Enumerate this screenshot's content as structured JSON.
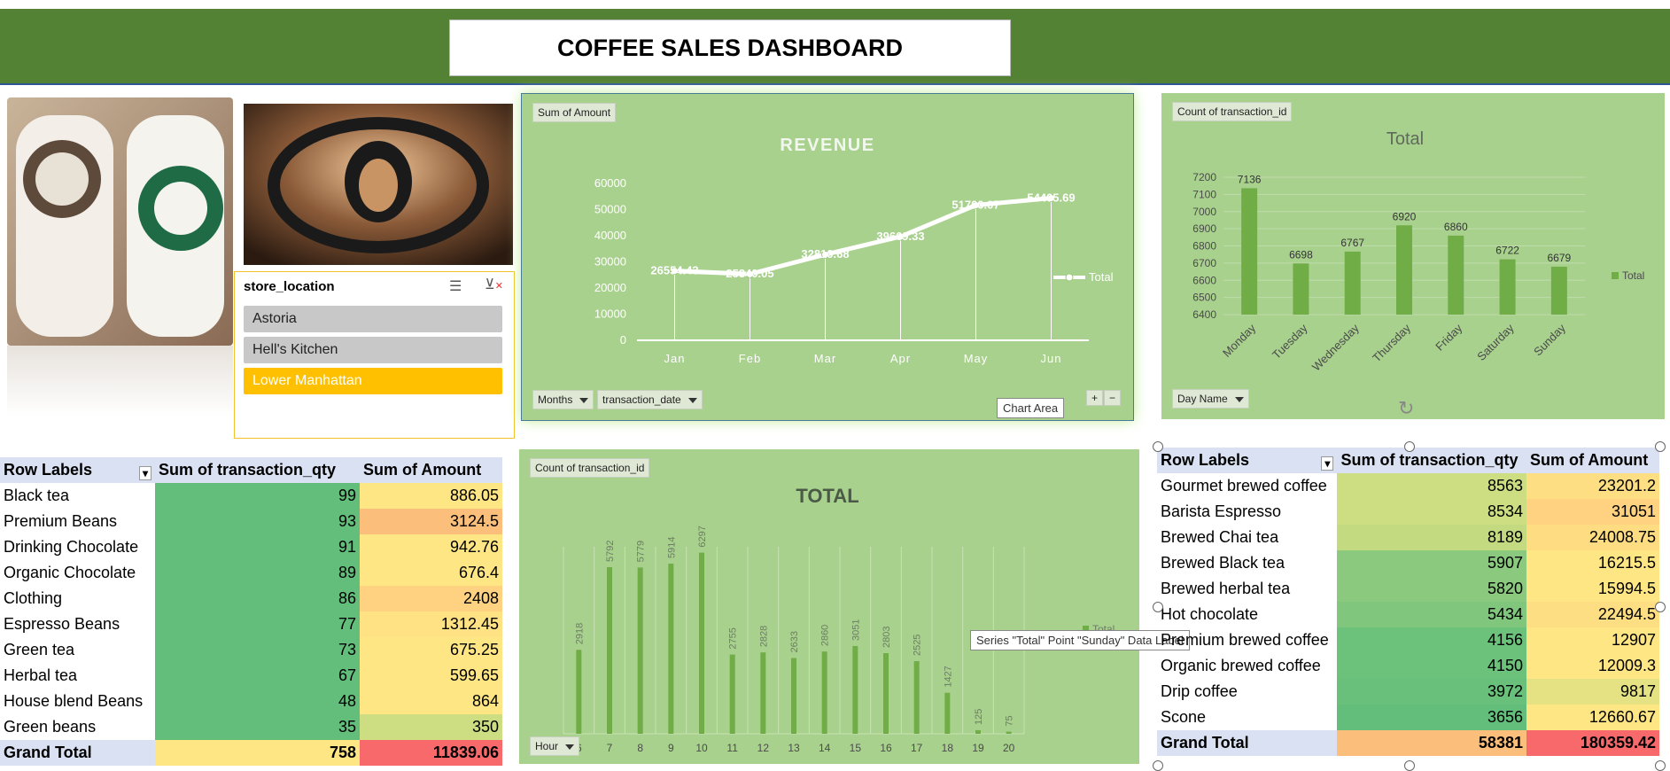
{
  "title": "COFFEE SALES DASHBOARD",
  "slicer": {
    "header": "store_location",
    "items": [
      "Astoria",
      "Hell's Kitchen",
      "Lower Manhattan"
    ],
    "selected": "Lower Manhattan"
  },
  "revenue_panel": {
    "tag": "Sum of Amount",
    "filter_months": "Months",
    "filter_date": "transaction_date",
    "chart_area_tooltip": "Chart Area",
    "plus": "+",
    "minus": "−"
  },
  "weekday_panel": {
    "tag": "Count  of transaction_id",
    "filter": "Day  Name"
  },
  "hour_panel": {
    "tag": "Count  of transaction_id",
    "filter": "Hour",
    "tooltip": "Series \"Total\" Point \"Sunday\" Data Label"
  },
  "chart_data": [
    {
      "type": "line",
      "title": "REVENUE",
      "categories": [
        "Jan",
        "Feb",
        "Mar",
        "Apr",
        "May",
        "Jun"
      ],
      "series": [
        {
          "name": "Total",
          "values": [
            26554.43,
            25340.05,
            32810.68,
            39669.33,
            51700.07,
            54405.69
          ]
        }
      ],
      "labels": [
        "26554.43",
        "25340.05",
        "32810.68",
        "39669.33",
        "51700.07",
        "54405.69"
      ],
      "yticks": [
        0,
        10000,
        20000,
        30000,
        40000,
        50000,
        60000
      ],
      "ylim": [
        0,
        60000
      ],
      "legend": "right"
    },
    {
      "type": "bar",
      "title": "Total",
      "categories": [
        "Monday",
        "Tuesday",
        "Wednesday",
        "Thursday",
        "Friday",
        "Saturday",
        "Sunday"
      ],
      "series": [
        {
          "name": "Total",
          "values": [
            7136,
            6698,
            6767,
            6920,
            6860,
            6722,
            6679
          ]
        }
      ],
      "yticks": [
        6400,
        6500,
        6600,
        6700,
        6800,
        6900,
        7000,
        7100,
        7200
      ],
      "ylim": [
        6400,
        7200
      ],
      "legend": "right"
    },
    {
      "type": "bar",
      "title": "TOTAL",
      "categories": [
        "6",
        "7",
        "8",
        "9",
        "10",
        "11",
        "12",
        "13",
        "14",
        "15",
        "16",
        "17",
        "18",
        "19",
        "20"
      ],
      "series": [
        {
          "name": "Total",
          "values": [
            2918,
            5792,
            5779,
            5914,
            6297,
            2755,
            2828,
            2633,
            2860,
            3051,
            2803,
            2525,
            1427,
            125,
            75
          ]
        }
      ],
      "ylim": [
        0,
        6500
      ],
      "legend": "right"
    }
  ],
  "left_table": {
    "headers": [
      "Row Labels",
      "Sum of transaction_qty",
      "Sum of Amount"
    ],
    "rows": [
      [
        "Black tea",
        "99",
        "886.05"
      ],
      [
        "Premium Beans",
        "93",
        "3124.5"
      ],
      [
        "Drinking Chocolate",
        "91",
        "942.76"
      ],
      [
        "Organic Chocolate",
        "89",
        "676.4"
      ],
      [
        "Clothing",
        "86",
        "2408"
      ],
      [
        "Espresso Beans",
        "77",
        "1312.45"
      ],
      [
        "Green tea",
        "73",
        "675.25"
      ],
      [
        "Herbal tea",
        "67",
        "599.65"
      ],
      [
        "House blend Beans",
        "48",
        "864"
      ],
      [
        "Green beans",
        "35",
        "350"
      ]
    ],
    "total": [
      "Grand Total",
      "758",
      "11839.06"
    ],
    "qty_colors": [
      "#63be7b",
      "#63be7b",
      "#63be7b",
      "#63be7b",
      "#63be7b",
      "#63be7b",
      "#63be7b",
      "#63be7b",
      "#63be7b",
      "#63be7b"
    ],
    "amt_colors": [
      "#ffe684",
      "#fcbf7b",
      "#ffe684",
      "#ffe684",
      "#fed280",
      "#ffe283",
      "#ffe684",
      "#ffe684",
      "#ffe684",
      "#cddd82"
    ]
  },
  "right_table": {
    "headers": [
      "Row Labels",
      "Sum of transaction_qty",
      "Sum of Amount"
    ],
    "rows": [
      [
        "Gourmet brewed coffee",
        "8563",
        "23201.2"
      ],
      [
        "Barista Espresso",
        "8534",
        "31051"
      ],
      [
        "Brewed Chai tea",
        "8189",
        "24008.75"
      ],
      [
        "Brewed Black tea",
        "5907",
        "16215.5"
      ],
      [
        "Brewed herbal tea",
        "5820",
        "15994.5"
      ],
      [
        "Hot chocolate",
        "5434",
        "22494.5"
      ],
      [
        "Premium brewed coffee",
        "4156",
        "12907"
      ],
      [
        "Organic brewed coffee",
        "4150",
        "12009.3"
      ],
      [
        "Drip coffee",
        "3972",
        "9817"
      ],
      [
        "Scone",
        "3656",
        "12660.67"
      ]
    ],
    "total": [
      "Grand Total",
      "58381",
      "180359.42"
    ],
    "qty_colors": [
      "#cddd82",
      "#cddd82",
      "#c4da81",
      "#8bc97e",
      "#8ac97e",
      "#81c67d",
      "#6cc17b",
      "#6cc17b",
      "#69c07b",
      "#63be7b"
    ],
    "amt_colors": [
      "#fede82",
      "#fed280",
      "#fedd82",
      "#ffe684",
      "#ffe684",
      "#fede82",
      "#ffe684",
      "#ffe684",
      "#e4e283",
      "#ffe684"
    ],
    "total_colors": [
      "#fcbf7b",
      "#f8696b"
    ]
  }
}
